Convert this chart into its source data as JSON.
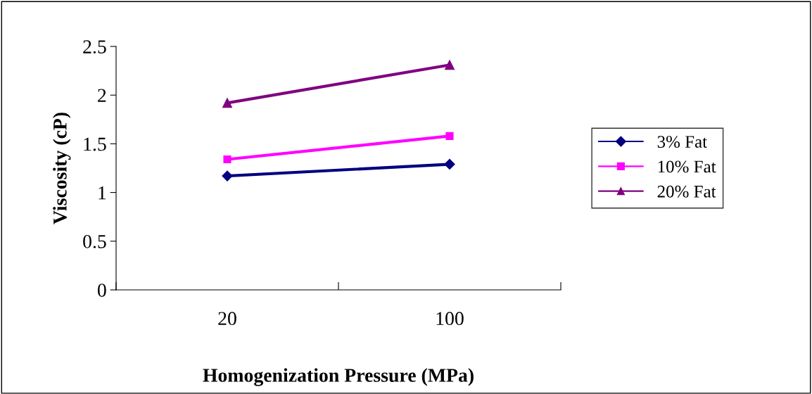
{
  "chart_data": {
    "type": "line",
    "xlabel": "Homogenization Pressure (MPa)",
    "ylabel": "Viscosity (cP)",
    "categories": [
      "20",
      "100"
    ],
    "series": [
      {
        "name": "3% Fat",
        "color": "#000080",
        "marker": "diamond",
        "values": [
          1.17,
          1.29
        ]
      },
      {
        "name": "10% Fat",
        "color": "#ff00ff",
        "marker": "square",
        "values": [
          1.34,
          1.58
        ]
      },
      {
        "name": "20% Fat",
        "color": "#800080",
        "marker": "triangle",
        "values": [
          1.92,
          2.31
        ]
      }
    ],
    "ylim": [
      0,
      2.5
    ],
    "yticks": [
      0,
      0.5,
      1,
      1.5,
      2,
      2.5
    ],
    "grid": false,
    "legend": "right"
  }
}
